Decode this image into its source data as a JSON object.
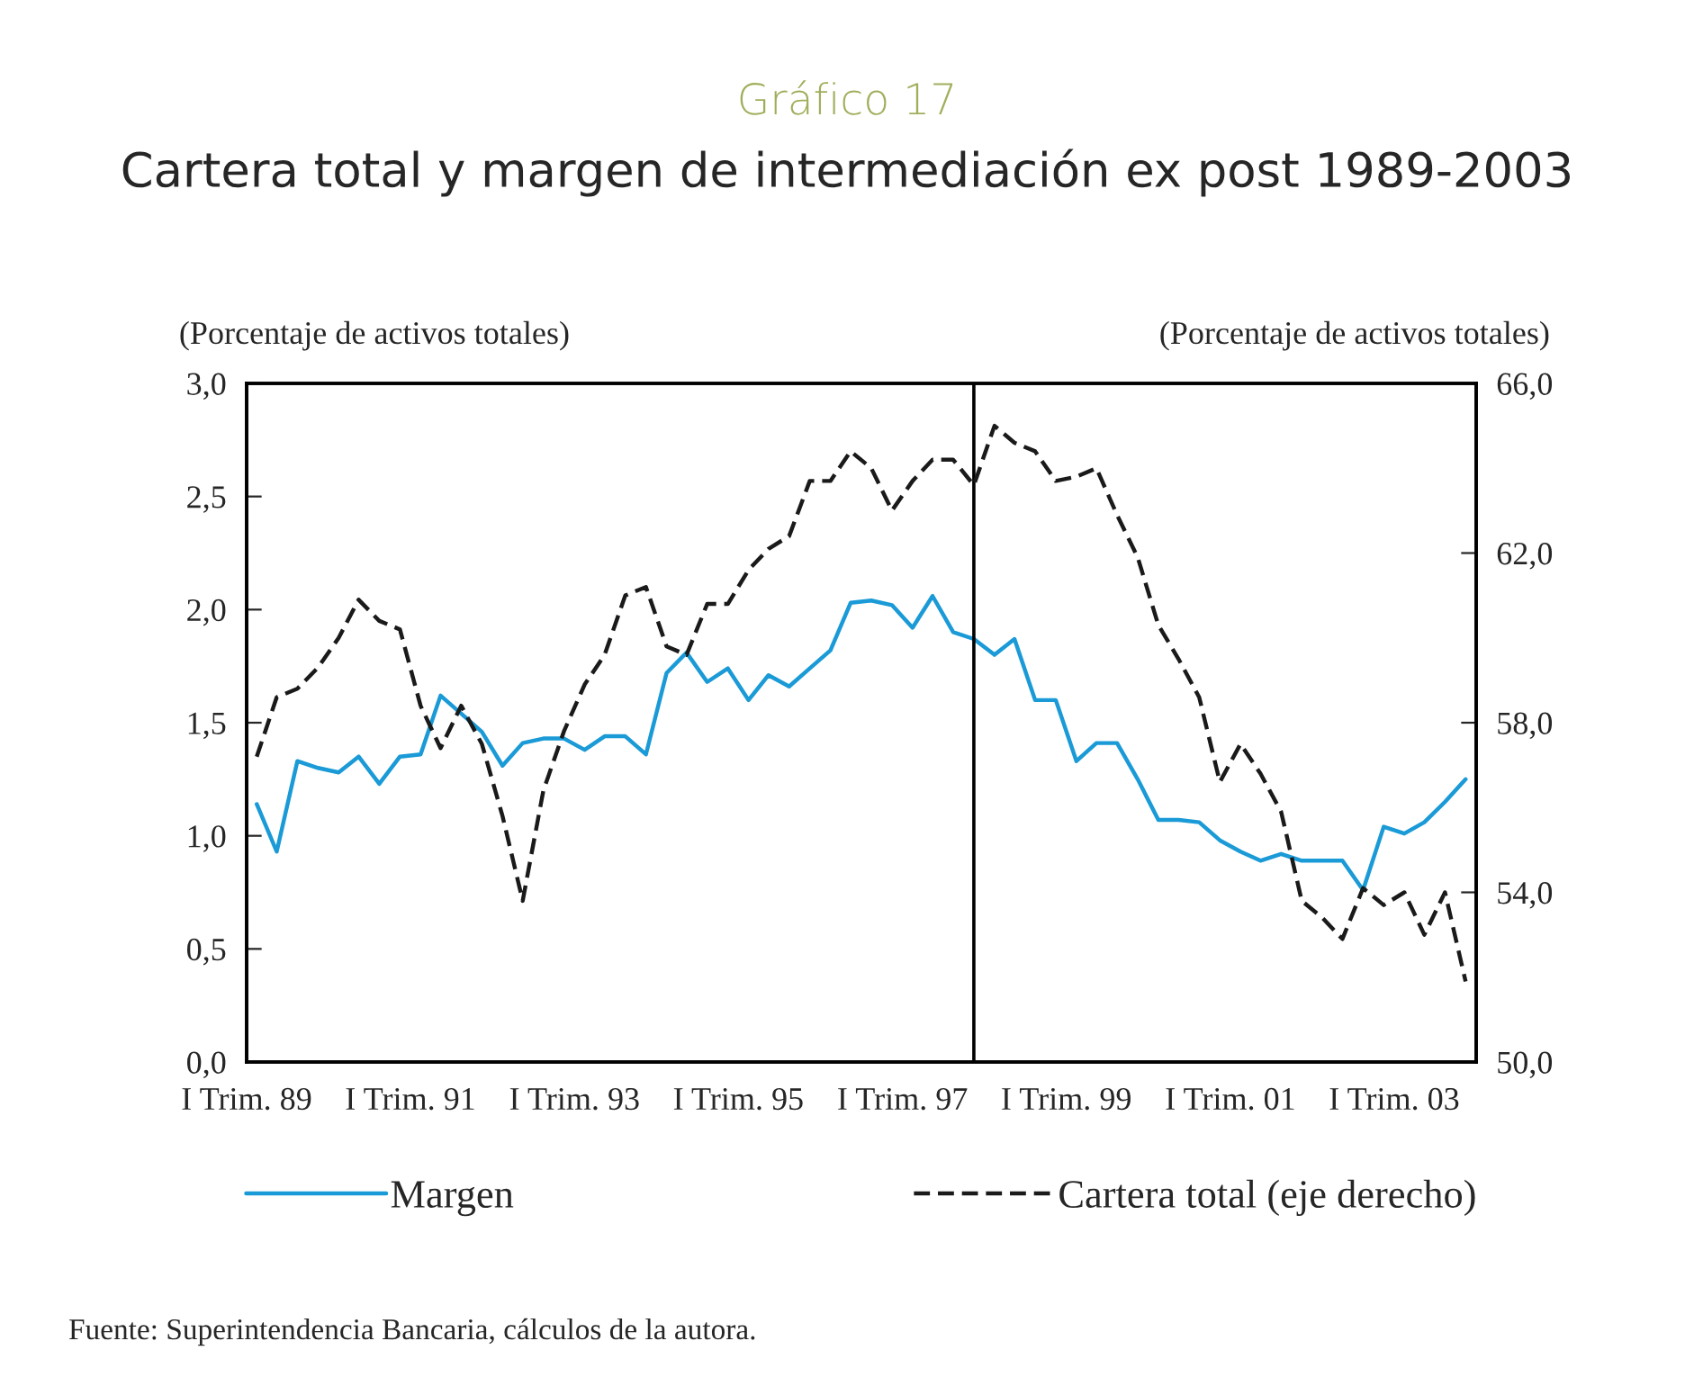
{
  "chart_data": {
    "type": "line",
    "subtitle": "Gráfico 17",
    "title": "Cartera total y margen de intermediación ex post 1989-2003",
    "ylabel": "(Porcentaje de activos totales)",
    "y2label": "(Porcentaje de activos totales)",
    "x": [
      "1989-02-15",
      "1989-05-15",
      "1989-08-15",
      "1989-11-15",
      "1990-02-15",
      "1990-05-15",
      "1990-08-15",
      "1990-11-15",
      "1991-02-15",
      "1991-05-15",
      "1991-08-15",
      "1991-11-15",
      "1992-02-15",
      "1992-05-15",
      "1992-08-15",
      "1992-11-15",
      "1993-02-15",
      "1993-05-15",
      "1993-08-15",
      "1993-11-15",
      "1994-02-15",
      "1994-05-15",
      "1994-08-15",
      "1994-11-15",
      "1995-02-15",
      "1995-05-15",
      "1995-08-15",
      "1995-11-15",
      "1996-02-15",
      "1996-05-15",
      "1996-08-15",
      "1996-11-15",
      "1997-02-15",
      "1997-05-15",
      "1997-08-15",
      "1997-11-15",
      "1998-02-15",
      "1998-05-15",
      "1998-08-15",
      "1998-11-15",
      "1999-02-15",
      "1999-05-15",
      "1999-08-15",
      "1999-11-15",
      "2000-02-15",
      "2000-05-15",
      "2000-08-15",
      "2000-11-15",
      "2001-02-15",
      "2001-05-15",
      "2001-08-15",
      "2001-11-15",
      "2002-02-15",
      "2002-05-15",
      "2002-08-15",
      "2002-11-15",
      "2003-02-15",
      "2003-05-15",
      "2003-08-15",
      "2003-11-15"
    ],
    "series": [
      {
        "name": "Margen",
        "color": "#1a9ad6",
        "line_style": "solid",
        "values": [
          1.14,
          0.93,
          1.33,
          1.3,
          1.28,
          1.35,
          1.23,
          1.35,
          1.36,
          1.62,
          1.54,
          1.46,
          1.31,
          1.41,
          1.43,
          1.43,
          1.38,
          1.44,
          1.44,
          1.36,
          1.72,
          1.81,
          1.68,
          1.74,
          1.6,
          1.71,
          1.66,
          1.74,
          1.82,
          2.03,
          2.04,
          2.02,
          1.92,
          2.06,
          1.9,
          1.87,
          1.8,
          1.87,
          1.6,
          1.6,
          1.33,
          1.41,
          1.41,
          1.25,
          1.07,
          1.07,
          1.06,
          0.98,
          0.93,
          0.89,
          0.92,
          0.89,
          0.89,
          0.89,
          0.76,
          1.04,
          1.01,
          1.06,
          1.15,
          1.25
        ]
      },
      {
        "name": "Cartera total (eje derecho)",
        "color": "#1a1a1a",
        "line_style": "dashed",
        "axis": "y2",
        "values": [
          57.2,
          58.6,
          58.8,
          59.3,
          60.0,
          60.9,
          60.4,
          60.2,
          58.4,
          57.4,
          58.4,
          57.5,
          55.8,
          53.8,
          56.4,
          57.8,
          58.9,
          59.6,
          61.0,
          61.2,
          59.8,
          59.6,
          60.8,
          60.8,
          61.6,
          62.1,
          62.4,
          63.7,
          63.7,
          64.4,
          64.0,
          63.0,
          63.7,
          64.2,
          64.2,
          63.6,
          65.0,
          64.6,
          64.4,
          63.7,
          63.8,
          64.0,
          62.9,
          61.9,
          60.3,
          59.5,
          58.6,
          56.6,
          57.5,
          56.8,
          55.9,
          53.8,
          53.4,
          52.9,
          54.1,
          53.7,
          54.0,
          53.0,
          54.0,
          51.9
        ]
      }
    ],
    "xlim": [
      "1989-01-01",
      "2004-01-01"
    ],
    "xticks": [
      {
        "value": "1989-01-01",
        "label": "I Trim. 89"
      },
      {
        "value": "1991-01-01",
        "label": "I Trim. 91"
      },
      {
        "value": "1993-01-01",
        "label": "I Trim. 93"
      },
      {
        "value": "1995-01-01",
        "label": "I Trim. 95"
      },
      {
        "value": "1997-01-01",
        "label": "I Trim. 97"
      },
      {
        "value": "1999-01-01",
        "label": "I Trim. 99"
      },
      {
        "value": "2001-01-01",
        "label": "I Trim. 01"
      },
      {
        "value": "2003-01-01",
        "label": "I Trim. 03"
      }
    ],
    "ylim": [
      0,
      3
    ],
    "yticks": [
      {
        "value": 0,
        "label": "0,0"
      },
      {
        "value": 0.5,
        "label": "0,5"
      },
      {
        "value": 1,
        "label": "1,0"
      },
      {
        "value": 1.5,
        "label": "1,5"
      },
      {
        "value": 2,
        "label": "2,0"
      },
      {
        "value": 2.5,
        "label": "2,5"
      },
      {
        "value": 3,
        "label": "3,0"
      }
    ],
    "y2lim": [
      50,
      66
    ],
    "y2ticks": [
      {
        "value": 50,
        "label": "50,0"
      },
      {
        "value": 54,
        "label": "54,0"
      },
      {
        "value": 58,
        "label": "58,0"
      },
      {
        "value": 62,
        "label": "62,0"
      },
      {
        "value": 66,
        "label": "66,0"
      }
    ],
    "ref_lines": [
      {
        "axis": "x",
        "value": "1997-11-15",
        "color": "#000000",
        "line_style": "solid"
      }
    ],
    "grid": false,
    "legend": "bottom",
    "marker": "none",
    "annotations": [
      "Fuente: Superintendencia Bancaria, cálculos de la autora."
    ]
  }
}
